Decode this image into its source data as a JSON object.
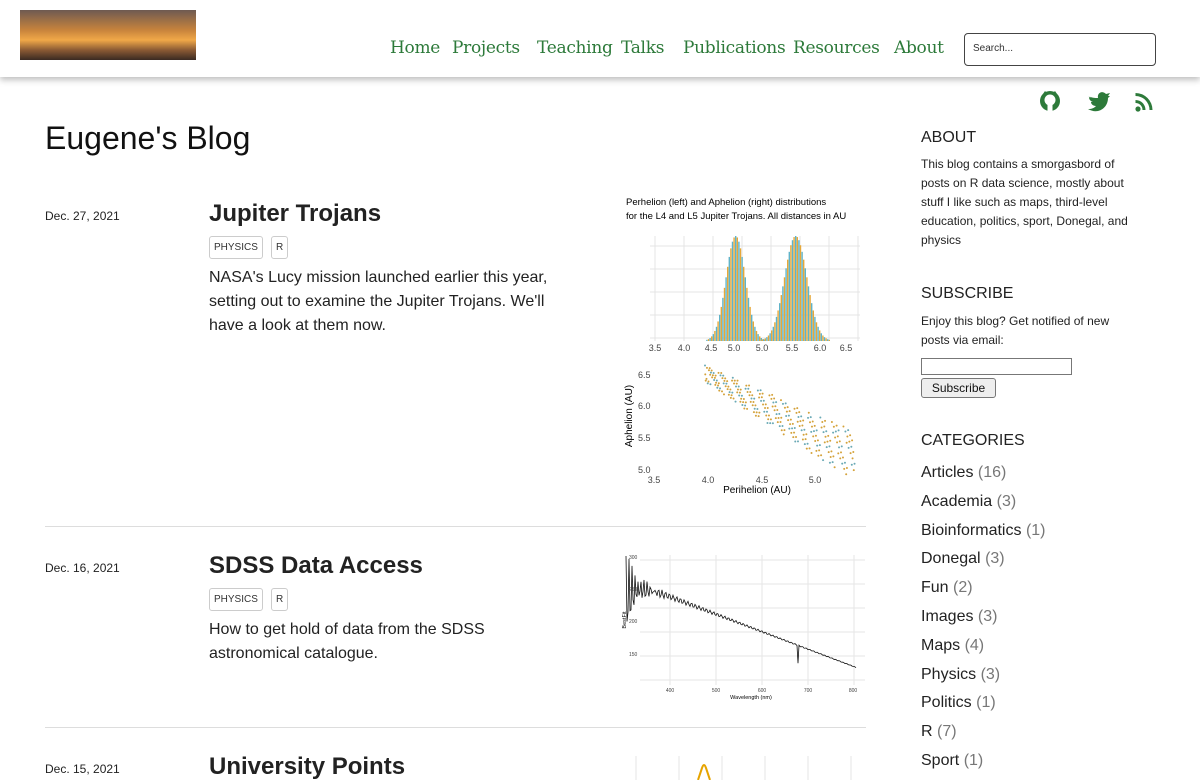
{
  "header": {
    "nav": [
      "Home",
      "Projects",
      "Teaching",
      "Talks",
      "Publications",
      "Resources",
      "About"
    ],
    "search_placeholder": "Search..."
  },
  "page_title": "Eugene's Blog",
  "posts": [
    {
      "date": "Dec. 27, 2021",
      "title": "Jupiter Trojans",
      "tags": [
        "PHYSICS",
        "R"
      ],
      "excerpt": "NASA's Lucy mission launched earlier this year, setting out to examine the Jupiter Trojans. We'll have a look at them now.",
      "thumbnail": {
        "caption": [
          "Perhelion (left) and Aphelion (right) distributions",
          "for the L4 and L5 Jupiter Trojans. All distances in AU"
        ],
        "top_ticks": [
          "3.5",
          "4.0",
          "4.5",
          "5.0",
          "5.0",
          "5.5",
          "6.0",
          "6.5"
        ],
        "y_ticks": [
          "6.5",
          "6.0",
          "5.5",
          "5.0"
        ],
        "x_ticks": [
          "3.5",
          "4.0",
          "4.5",
          "5.0"
        ],
        "x_label": "Perihelion (AU)",
        "y_label": "Aphelion (AU)"
      }
    },
    {
      "date": "Dec. 16, 2021",
      "title": "SDSS Data Access",
      "tags": [
        "PHYSICS",
        "R"
      ],
      "excerpt": "How to get hold of data from the SDSS astronomical catalogue.",
      "thumbnail": {
        "y_ticks": [
          "300",
          "250",
          "200",
          "150"
        ],
        "x_ticks": [
          "400",
          "500",
          "600",
          "700",
          "800"
        ],
        "x_label": "Wavelength (nm)",
        "y_label": "BestFit"
      }
    },
    {
      "date": "Dec. 15, 2021",
      "title": "University Points"
    }
  ],
  "sidebar": {
    "about_heading": "ABOUT",
    "about_text": "This blog contains a smorgasbord of posts on R data science, mostly about stuff I like such as maps, third-level education, politics, sport, Donegal, and physics",
    "subscribe_heading": "SUBSCRIBE",
    "subscribe_text": "Enjoy this blog? Get notified of new posts via email:",
    "subscribe_button": "Subscribe",
    "categories_heading": "CATEGORIES",
    "categories": [
      {
        "name": "Articles",
        "count": "(16)"
      },
      {
        "name": "Academia",
        "count": "(3)"
      },
      {
        "name": "Bioinformatics",
        "count": "(1)"
      },
      {
        "name": "Donegal",
        "count": "(3)"
      },
      {
        "name": "Fun",
        "count": "(2)"
      },
      {
        "name": "Images",
        "count": "(3)"
      },
      {
        "name": "Maps",
        "count": "(4)"
      },
      {
        "name": "Physics",
        "count": "(3)"
      },
      {
        "name": "Politics",
        "count": "(1)"
      },
      {
        "name": "R",
        "count": "(7)"
      },
      {
        "name": "Sport",
        "count": "(1)"
      }
    ]
  }
}
